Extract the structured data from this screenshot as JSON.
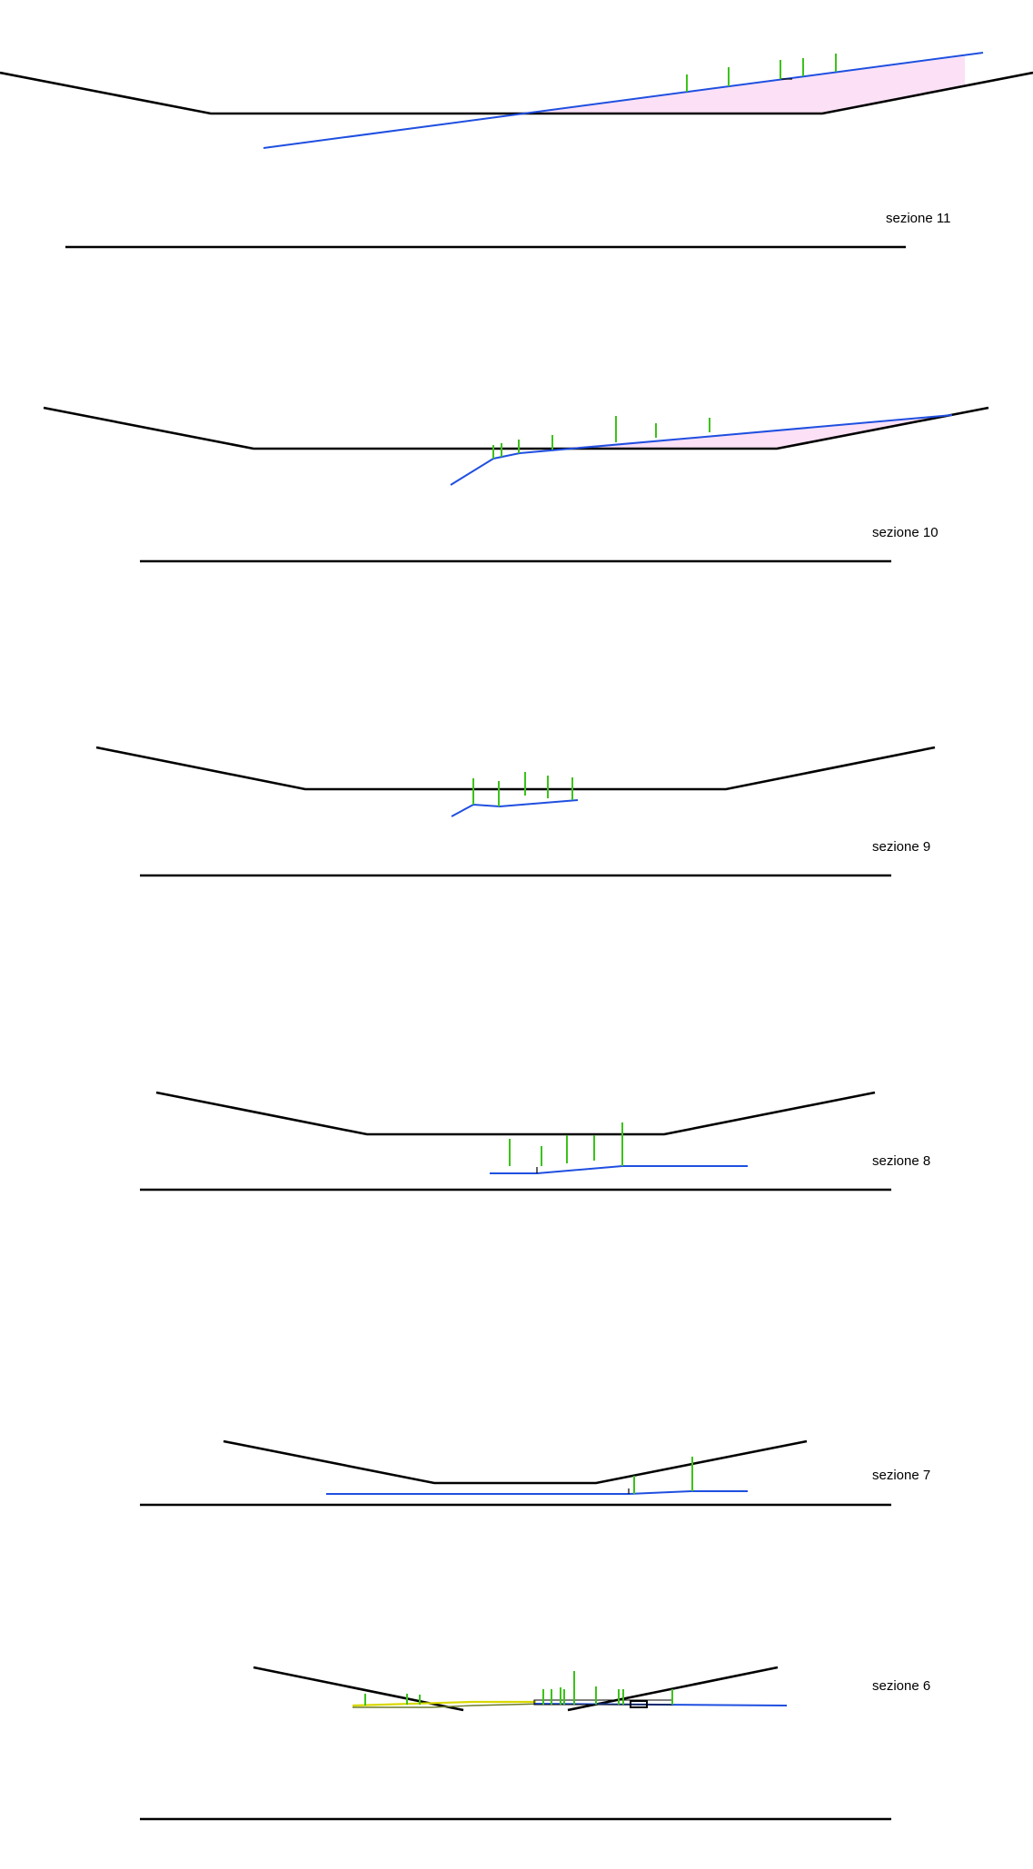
{
  "colors": {
    "profile": "#000000",
    "water": "#1f4fe0",
    "vegetation": "#3cc21a",
    "fill_area": "#fbe0f6",
    "yellow_line": "#d8d800",
    "olive_line": "#6b7a2a"
  },
  "sections": [
    {
      "id": "s11",
      "label": "sezione 11"
    },
    {
      "id": "s10",
      "label": "sezione 10"
    },
    {
      "id": "s9",
      "label": "sezione 9"
    },
    {
      "id": "s8",
      "label": "sezione 8"
    },
    {
      "id": "s7",
      "label": "sezione 7"
    },
    {
      "id": "s6",
      "label": "sezione 6"
    }
  ]
}
